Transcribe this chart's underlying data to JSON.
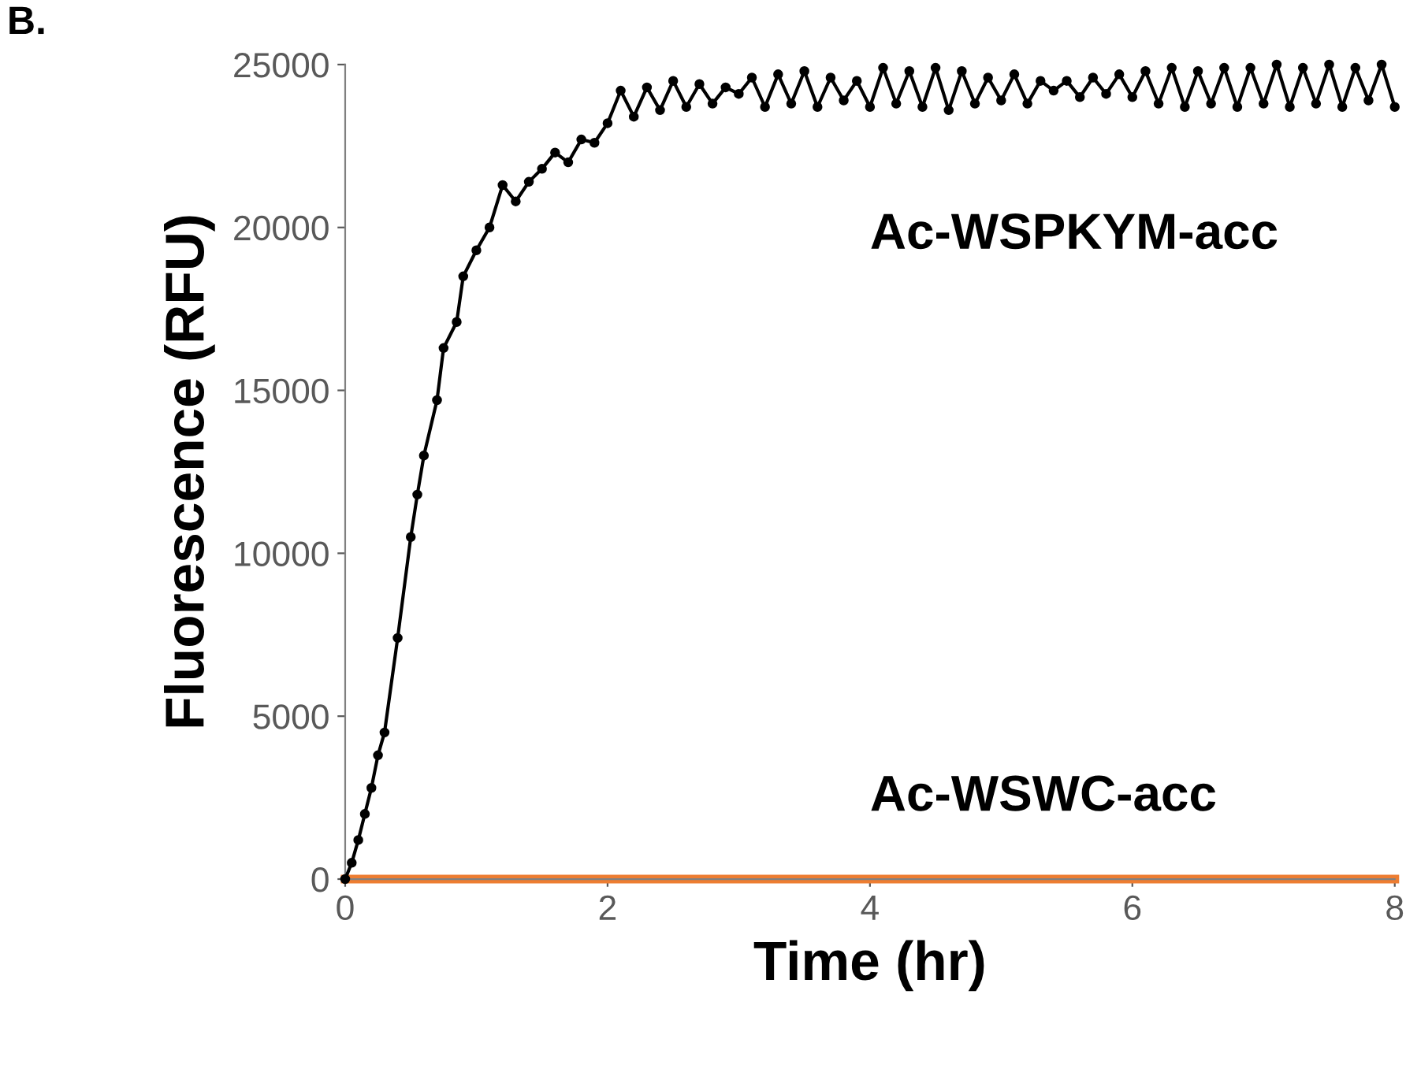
{
  "chart_data": {
    "type": "line",
    "xlabel": "Time (hr)",
    "ylabel": "Fluorescence (RFU)",
    "annotations": [
      "B."
    ],
    "xlim": [
      0,
      8
    ],
    "xticks": [
      0,
      2,
      4,
      6,
      8
    ],
    "ylim": [
      0,
      25000
    ],
    "yticks": [
      0,
      5000,
      10000,
      15000,
      20000,
      25000
    ],
    "grid": false,
    "legend": false,
    "series": [
      {
        "name": "Ac-WSPKYM-acc",
        "color": "#000000",
        "marker": "circle",
        "x": [
          0,
          0.05,
          0.1,
          0.15,
          0.2,
          0.25,
          0.3,
          0.4,
          0.5,
          0.55,
          0.6,
          0.7,
          0.75,
          0.85,
          0.9,
          1.0,
          1.1,
          1.2,
          1.3,
          1.4,
          1.5,
          1.6,
          1.7,
          1.8,
          1.9,
          2.0,
          2.1,
          2.2,
          2.3,
          2.4,
          2.5,
          2.6,
          2.7,
          2.8,
          2.9,
          3.0,
          3.1,
          3.2,
          3.3,
          3.4,
          3.5,
          3.6,
          3.7,
          3.8,
          3.9,
          4.0,
          4.1,
          4.2,
          4.3,
          4.4,
          4.5,
          4.6,
          4.7,
          4.8,
          4.9,
          5.0,
          5.1,
          5.2,
          5.3,
          5.4,
          5.5,
          5.6,
          5.7,
          5.8,
          5.9,
          6.0,
          6.1,
          6.2,
          6.3,
          6.4,
          6.5,
          6.6,
          6.7,
          6.8,
          6.9,
          7.0,
          7.1,
          7.2,
          7.3,
          7.4,
          7.5,
          7.6,
          7.7,
          7.8,
          7.9,
          8.0
        ],
        "values": [
          0,
          500,
          1200,
          2000,
          2800,
          3800,
          4500,
          7400,
          10500,
          11800,
          13000,
          14700,
          16300,
          17100,
          18500,
          19300,
          20000,
          21300,
          20800,
          21400,
          21800,
          22300,
          22000,
          22700,
          22600,
          23200,
          24200,
          23400,
          24300,
          23600,
          24500,
          23700,
          24400,
          23800,
          24300,
          24100,
          24600,
          23700,
          24700,
          23800,
          24800,
          23700,
          24600,
          23900,
          24500,
          23700,
          24900,
          23800,
          24800,
          23700,
          24900,
          23600,
          24800,
          23800,
          24600,
          23900,
          24700,
          23800,
          24500,
          24200,
          24500,
          24000,
          24600,
          24100,
          24700,
          24000,
          24800,
          23800,
          24900,
          23700,
          24800,
          23800,
          24900,
          23700,
          24900,
          23800,
          25000,
          23700,
          24900,
          23800,
          25000,
          23700,
          24900,
          23900,
          25000,
          23700
        ]
      },
      {
        "name": "Ac-WSWC-acc",
        "color": "#ed7d31",
        "marker": "none",
        "x": [
          0,
          1,
          2,
          3,
          4,
          5,
          6,
          7,
          8
        ],
        "values": [
          0,
          0,
          0,
          0,
          0,
          0,
          0,
          0,
          0
        ]
      }
    ]
  }
}
